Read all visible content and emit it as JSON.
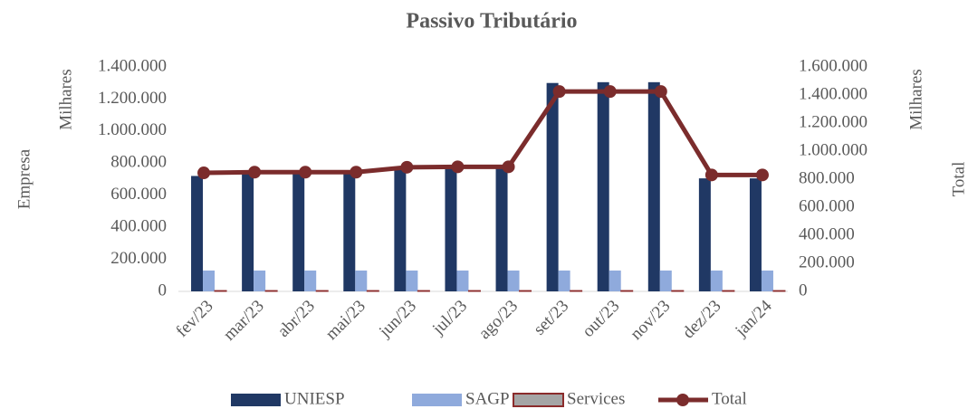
{
  "chart_data": {
    "type": "bar-line",
    "title": "Passivo Tributário",
    "y_label": "Empresa",
    "y_unit": "Milhares",
    "y2_label": "Total",
    "y2_unit": "Milhares",
    "categories": [
      "fev/23",
      "mar/23",
      "abr/23",
      "mai/23",
      "jun/23",
      "jul/23",
      "ago/23",
      "set/23",
      "out/23",
      "nov/23",
      "dez/23",
      "jan/24"
    ],
    "series": [
      {
        "name": "UNIESP",
        "type": "bar",
        "color": "#203864",
        "values": [
          720000,
          740000,
          740000,
          740000,
          775000,
          785000,
          785000,
          1300000,
          1305000,
          1305000,
          705000,
          705000
        ]
      },
      {
        "name": "SAGP",
        "type": "bar",
        "color": "#8faadc",
        "values": [
          130000,
          130000,
          130000,
          130000,
          130000,
          130000,
          130000,
          130000,
          130000,
          130000,
          130000,
          130000
        ]
      },
      {
        "name": "Services",
        "type": "bar",
        "color": "#a5a5a5",
        "edge": "#8b2b2b",
        "values": [
          5000,
          5000,
          5000,
          5000,
          5000,
          5000,
          5000,
          5000,
          5000,
          5000,
          5000,
          5000
        ]
      },
      {
        "name": "Total",
        "type": "line",
        "axis": "y2",
        "color": "#7b2c2c",
        "values": [
          845000,
          850000,
          850000,
          850000,
          885000,
          888000,
          888000,
          1425000,
          1425000,
          1425000,
          830000,
          830000
        ]
      }
    ],
    "ylim": [
      0,
      1400000
    ],
    "yticks": [
      0,
      {
        "value": 200000,
        "label": "200.000"
      },
      {
        "value": 400000,
        "label": "400.000"
      },
      {
        "value": 600000,
        "label": "600.000"
      },
      {
        "value": 800000,
        "label": "800.000"
      },
      {
        "value": 1000000,
        "label": "1.000.000"
      },
      {
        "value": 1200000,
        "label": "1.200.000"
      },
      {
        "value": 1400000,
        "label": "1.400.000"
      }
    ],
    "y2lim": [
      0,
      1600000
    ],
    "y2ticks": [
      0,
      {
        "value": 200000,
        "label": "200.000"
      },
      {
        "value": 400000,
        "label": "400.000"
      },
      {
        "value": 600000,
        "label": "600.000"
      },
      {
        "value": 800000,
        "label": "800.000"
      },
      {
        "value": 1000000,
        "label": "1.000.000"
      },
      {
        "value": 1200000,
        "label": "1.200.000"
      },
      {
        "value": 1400000,
        "label": "1.400.000"
      },
      {
        "value": 1600000,
        "label": "1.600.000"
      }
    ],
    "legend": "bottom"
  }
}
